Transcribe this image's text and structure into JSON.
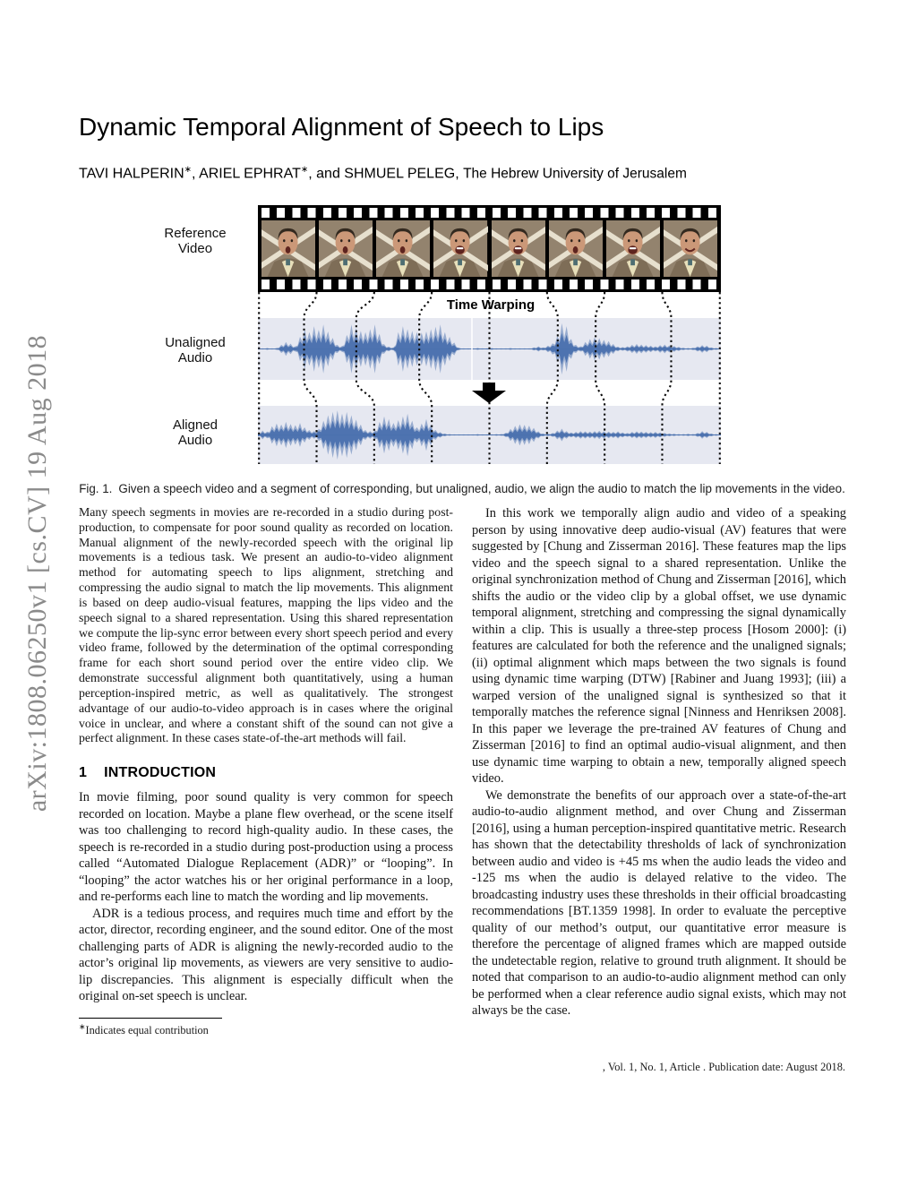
{
  "sidebar": {
    "text": "arXiv:1808.06250v1  [cs.CV]  19 Aug 2018"
  },
  "header": {
    "title": "Dynamic Temporal Alignment of Speech to Lips",
    "authors": {
      "a1": "TAVI HALPERIN",
      "mark1": "∗",
      "sep1": ", ",
      "a2": "ARIEL EPHRAT",
      "mark2": "∗",
      "sep2": ", and ",
      "a3": "SHMUEL PELEG",
      "sep3": ", ",
      "affiliation": "The Hebrew University of Jerusalem"
    }
  },
  "figure": {
    "labels": {
      "reference_l1": "Reference",
      "reference_l2": "Video",
      "time_warping": "Time Warping",
      "unaligned_l1": "Unaligned",
      "unaligned_l2": "Audio",
      "aligned_l1": "Aligned",
      "aligned_l2": "Audio"
    },
    "caption": {
      "prefix": "Fig. 1.",
      "text": "Given a speech video and a segment of corresponding, but unaligned, audio, we align the audio to match the lip movements in the video."
    },
    "frames": [
      "open",
      "open",
      "open",
      "wide",
      "wide",
      "open",
      "wide",
      "smile"
    ],
    "connector_mid_offsets": [
      0,
      -14,
      -20,
      -14,
      0,
      12,
      -10,
      10,
      0
    ],
    "waveforms": {
      "unaligned": [
        2,
        2,
        3,
        2,
        3,
        14,
        24,
        18,
        9,
        42,
        70,
        58,
        78,
        66,
        84,
        60,
        38,
        14,
        10,
        48,
        84,
        72,
        62,
        58,
        68,
        84,
        52,
        16,
        8,
        5,
        58,
        78,
        68,
        62,
        58,
        56,
        60,
        68,
        76,
        84,
        58,
        42,
        22,
        4,
        2,
        2,
        2,
        3,
        2,
        2,
        3,
        2,
        2,
        2,
        3,
        2,
        2,
        2,
        2,
        5,
        9,
        5,
        11,
        19,
        44,
        88,
        78,
        34,
        14,
        9,
        24,
        34,
        40,
        37,
        31,
        27,
        17,
        8,
        6,
        9,
        14,
        17,
        15,
        13,
        11,
        9,
        13,
        15,
        12,
        10,
        7,
        4,
        3,
        4,
        9,
        13,
        11,
        5,
        3,
        2
      ],
      "aligned": [
        6,
        16,
        12,
        32,
        42,
        38,
        48,
        40,
        36,
        44,
        28,
        18,
        14,
        22,
        52,
        72,
        84,
        90,
        78,
        84,
        72,
        56,
        38,
        18,
        14,
        16,
        48,
        68,
        58,
        44,
        54,
        68,
        78,
        52,
        28,
        42,
        58,
        38,
        18,
        10,
        5,
        3,
        2,
        2,
        2,
        2,
        2,
        3,
        2,
        2,
        2,
        3,
        3,
        8,
        22,
        33,
        39,
        37,
        34,
        26,
        13,
        5,
        4,
        7,
        16,
        23,
        14,
        9,
        11,
        14,
        13,
        12,
        14,
        15,
        13,
        12,
        11,
        13,
        9,
        7,
        11,
        13,
        12,
        11,
        10,
        11,
        9,
        7,
        5,
        4,
        3,
        3,
        4,
        3,
        7,
        14,
        11,
        5,
        3,
        2
      ]
    }
  },
  "colors": {
    "waveform": "#4a70ae",
    "band_background": "#e6e8f1",
    "sidebar_gray": "#8a8a8a"
  },
  "abstract": {
    "text": "Many speech segments in movies are re-recorded in a studio during post-production, to compensate for poor sound quality as recorded on location. Manual alignment of the newly-recorded speech with the original lip movements is a tedious task. We present an audio-to-video alignment method for automating speech to lips alignment, stretching and compressing the audio signal to match the lip movements. This alignment is based on deep audio-visual features, mapping the lips video and the speech signal to a shared representation. Using this shared representation we compute the lip-sync error between every short speech period and every video frame, followed by the determination of the optimal corresponding frame for each short sound period over the entire video clip. We demonstrate successful alignment both quantitatively, using a human perception-inspired metric, as well as qualitatively. The strongest advantage of our audio-to-video approach is in cases where the original voice in unclear, and where a constant shift of the sound can not give a perfect alignment. In these cases state-of-the-art methods will fail."
  },
  "intro": {
    "number": "1",
    "heading": "INTRODUCTION",
    "p1": "In movie filming, poor sound quality is very common for speech recorded on location. Maybe a plane flew overhead, or the scene itself was too challenging to record high-quality audio. In these cases, the speech is re-recorded in a studio during post-production using a process called “Automated Dialogue Replacement (ADR)” or “looping”. In “looping” the actor watches his or her original performance in a loop, and re-performs each line to match the wording and lip movements.",
    "p2": "ADR is a tedious process, and requires much time and effort by the actor, director, recording engineer, and the sound editor. One of the most challenging parts of ADR is aligning the newly-recorded audio to the actor’s original lip movements, as viewers are very sensitive to audio-lip discrepancies. This alignment is especially difficult when the original on-set speech is unclear."
  },
  "right_column": {
    "p1": "In this work we temporally align audio and video of a speaking person by using innovative deep audio-visual (AV) features that were suggested by [Chung and Zisserman 2016]. These features map the lips video and the speech signal to a shared representation. Unlike the original synchronization method of Chung and Zisserman [2016], which shifts the audio or the video clip by a global offset, we use dynamic temporal alignment, stretching and compressing the signal dynamically within a clip. This is usually a three-step process [Hosom 2000]: (i) features are calculated for both the reference and the unaligned signals; (ii) optimal alignment which maps between the two signals is found using dynamic time warping (DTW) [Rabiner and Juang 1993]; (iii) a warped version of the unaligned signal is synthesized so that it temporally matches the reference signal [Ninness and Henriksen 2008]. In this paper we leverage the pre-trained AV features of Chung and Zisserman [2016] to find an optimal audio-visual alignment, and then use dynamic time warping to obtain a new, temporally aligned speech video.",
    "p2": "We demonstrate the benefits of our approach over a state-of-the-art audio-to-audio alignment method, and over Chung and Zisserman [2016], using a human perception-inspired quantitative metric. Research has shown that the detectability thresholds of lack of synchronization between audio and video is +45 ms when the audio leads the video and -125 ms when the audio is delayed relative to the video. The broadcasting industry uses these thresholds in their official broadcasting recommendations [BT.1359 1998]. In order to evaluate the perceptive quality of our method’s output, our quantitative error measure is therefore the percentage of aligned frames which are mapped outside the undetectable region, relative to ground truth alignment. It should be noted that comparison to an audio-to-audio alignment method can only be performed when a clear reference audio signal exists, which may not always be the case."
  },
  "footnote": {
    "mark": "∗",
    "text": "Indicates equal contribution"
  },
  "footer": {
    "text": ", Vol. 1, No. 1, Article . Publication date: August 2018."
  }
}
